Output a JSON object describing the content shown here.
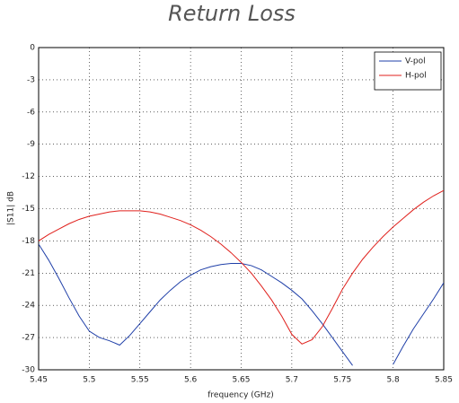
{
  "chart_data": {
    "type": "line",
    "title": "Return Loss",
    "xlabel": "frequency (GHz)",
    "ylabel": "|S11| dB",
    "x": [
      5.45,
      5.46,
      5.47,
      5.48,
      5.49,
      5.5,
      5.51,
      5.52,
      5.53,
      5.54,
      5.55,
      5.56,
      5.57,
      5.58,
      5.59,
      5.6,
      5.61,
      5.62,
      5.63,
      5.64,
      5.65,
      5.66,
      5.67,
      5.68,
      5.69,
      5.7,
      5.71,
      5.72,
      5.73,
      5.74,
      5.75,
      5.76,
      5.77,
      5.78,
      5.79,
      5.8,
      5.81,
      5.82,
      5.83,
      5.84,
      5.85
    ],
    "series": [
      {
        "name": "V-pol",
        "color": "#1f3fa8",
        "values": [
          -18.3,
          -19.8,
          -21.5,
          -23.3,
          -25.0,
          -26.4,
          -27.0,
          -27.3,
          -27.7,
          -26.8,
          -25.7,
          -24.6,
          -23.5,
          -22.6,
          -21.8,
          -21.2,
          -20.7,
          -20.4,
          -20.2,
          -20.1,
          -20.1,
          -20.3,
          -20.7,
          -21.3,
          -21.9,
          -22.6,
          -23.4,
          -24.5,
          -25.7,
          -27.0,
          -28.3,
          -29.6,
          null,
          null,
          null,
          -29.5,
          -27.8,
          -26.2,
          -24.8,
          -23.4,
          -21.9
        ]
      },
      {
        "name": "H-pol",
        "color": "#e0201c",
        "values": [
          -18.0,
          -17.4,
          -16.9,
          -16.4,
          -16.0,
          -15.7,
          -15.5,
          -15.3,
          -15.2,
          -15.2,
          -15.2,
          -15.3,
          -15.5,
          -15.8,
          -16.1,
          -16.5,
          -17.0,
          -17.6,
          -18.3,
          -19.1,
          -20.0,
          -21.0,
          -22.2,
          -23.5,
          -25.0,
          -26.7,
          -27.6,
          -27.2,
          -26.0,
          -24.3,
          -22.5,
          -21.0,
          -19.7,
          -18.6,
          -17.6,
          -16.7,
          -15.9,
          -15.1,
          -14.4,
          -13.8,
          -13.3
        ]
      }
    ],
    "xlim": [
      5.45,
      5.85
    ],
    "xticks": [
      5.45,
      5.5,
      5.55,
      5.6,
      5.65,
      5.7,
      5.75,
      5.8,
      5.85
    ],
    "ylim": [
      -30,
      0
    ],
    "yticks": [
      0,
      -3,
      -6,
      -9,
      -12,
      -15,
      -18,
      -21,
      -24,
      -27,
      -30
    ],
    "grid": true,
    "legend": "northeast"
  }
}
